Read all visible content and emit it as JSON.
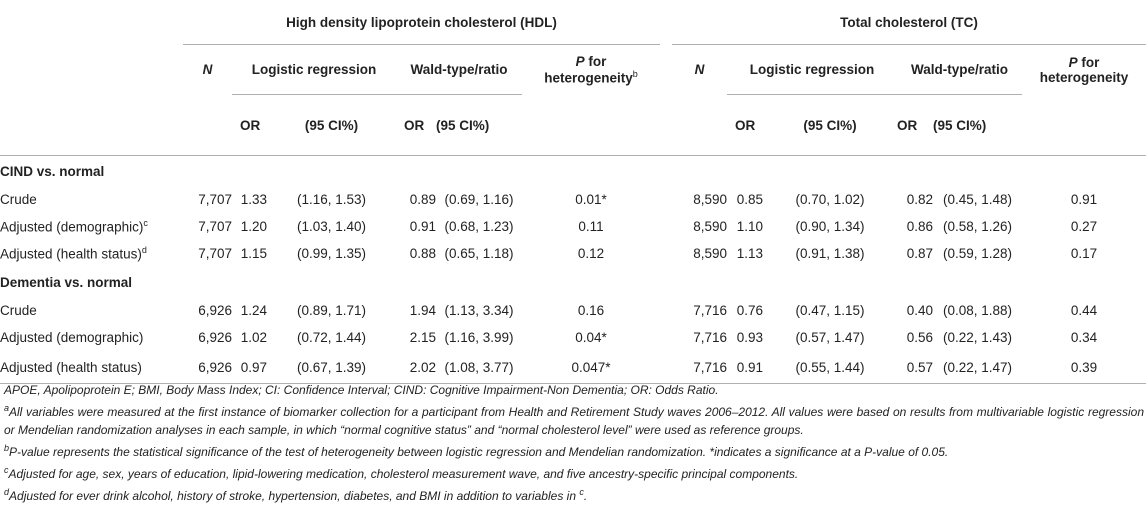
{
  "header": {
    "group_hdl": "High density lipoprotein cholesterol (HDL)",
    "group_tc": "Total cholesterol (TC)",
    "n": "N",
    "logistic": "Logistic regression",
    "wald": "Wald-type/ratio",
    "p_het_italic": "P",
    "p_het_rest": " for",
    "p_het_line2": "heterogeneity",
    "p_het_sup": "b",
    "or": "OR",
    "ci": "(95 CI%)"
  },
  "sections": [
    {
      "title": "CIND vs. normal",
      "rows": [
        {
          "label": "Crude",
          "sup": "",
          "hdl_n": "7,707",
          "hdl_or1": "1.33",
          "hdl_ci1": "(1.16, 1.53)",
          "hdl_or2": "0.89",
          "hdl_ci2": "(0.69, 1.16)",
          "hdl_p": "0.01*",
          "tc_n": "8,590",
          "tc_or1": "0.85",
          "tc_ci1": "(0.70, 1.02)",
          "tc_or2": "0.82",
          "tc_ci2": "(0.45, 1.48)",
          "tc_p": "0.91"
        },
        {
          "label": "Adjusted (demographic)",
          "sup": "c",
          "hdl_n": "7,707",
          "hdl_or1": "1.20",
          "hdl_ci1": "(1.03, 1.40)",
          "hdl_or2": "0.91",
          "hdl_ci2": "(0.68, 1.23)",
          "hdl_p": "0.11",
          "tc_n": "8,590",
          "tc_or1": "1.10",
          "tc_ci1": "(0.90, 1.34)",
          "tc_or2": "0.86",
          "tc_ci2": "(0.58, 1.26)",
          "tc_p": "0.27"
        },
        {
          "label": "Adjusted (health status)",
          "sup": "d",
          "hdl_n": "7,707",
          "hdl_or1": "1.15",
          "hdl_ci1": "(0.99, 1.35)",
          "hdl_or2": "0.88",
          "hdl_ci2": "(0.65, 1.18)",
          "hdl_p": "0.12",
          "tc_n": "8,590",
          "tc_or1": "1.13",
          "tc_ci1": "(0.91, 1.38)",
          "tc_or2": "0.87",
          "tc_ci2": "(0.59, 1.28)",
          "tc_p": "0.17"
        }
      ]
    },
    {
      "title": "Dementia vs. normal",
      "rows": [
        {
          "label": "Crude",
          "sup": "",
          "hdl_n": "6,926",
          "hdl_or1": "1.24",
          "hdl_ci1": "(0.89, 1.71)",
          "hdl_or2": "1.94",
          "hdl_ci2": "(1.13, 3.34)",
          "hdl_p": "0.16",
          "tc_n": "7,716",
          "tc_or1": "0.76",
          "tc_ci1": "(0.47, 1.15)",
          "tc_or2": "0.40",
          "tc_ci2": "(0.08, 1.88)",
          "tc_p": "0.44"
        },
        {
          "label": "Adjusted (demographic)",
          "sup": "",
          "hdl_n": "6,926",
          "hdl_or1": "1.02",
          "hdl_ci1": "(0.72, 1.44)",
          "hdl_or2": "2.15",
          "hdl_ci2": "(1.16, 3.99)",
          "hdl_p": "0.04*",
          "tc_n": "7,716",
          "tc_or1": "0.93",
          "tc_ci1": "(0.57, 1.47)",
          "tc_or2": "0.56",
          "tc_ci2": "(0.22, 1.43)",
          "tc_p": "0.34"
        },
        {
          "label": "Adjusted (health status)",
          "sup": "",
          "hdl_n": "6,926",
          "hdl_or1": "0.97",
          "hdl_ci1": "(0.67, 1.39)",
          "hdl_or2": "2.02",
          "hdl_ci2": "(1.08, 3.77)",
          "hdl_p": "0.047*",
          "tc_n": "7,716",
          "tc_or1": "0.91",
          "tc_ci1": "(0.55, 1.44)",
          "tc_or2": "0.57",
          "tc_ci2": "(0.22, 1.47)",
          "tc_p": "0.39"
        }
      ]
    }
  ],
  "notes": {
    "abbrev": "APOE, Apolipoprotein E; BMI, Body Mass Index; CI: Confidence Interval; CIND: Cognitive Impairment-Non Dementia; OR: Odds Ratio.",
    "a_mark": "a",
    "a_text": "All variables were measured at the first instance of biomarker collection for a participant from Health and Retirement Study waves 2006–2012. All values were based on results from multivariable logistic regression or Mendelian randomization analyses in each sample, in which “normal cognitive status” and “normal cholesterol level” were used as reference groups.",
    "b_mark": "b",
    "b_text": "P-value represents the statistical significance of the test of heterogeneity between logistic regression and Mendelian randomization. *indicates a significance at a P-value of 0.05.",
    "c_mark": "c",
    "c_text": "Adjusted for age, sex, years of education, lipid-lowering medication, cholesterol measurement wave, and five ancestry-specific principal components.",
    "d_mark": "d",
    "d_text": "Adjusted for ever drink alcohol, history of stroke, hypertension, diabetes, and BMI in addition to variables in ",
    "d_ref": "c",
    "d_end": "."
  }
}
